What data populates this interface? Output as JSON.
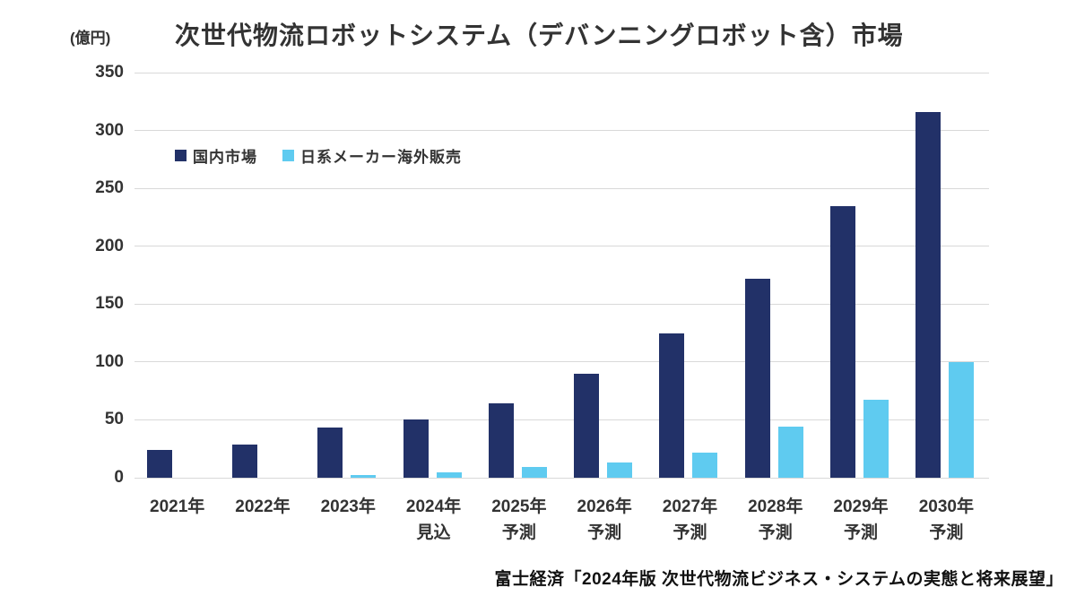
{
  "chart_data": {
    "type": "bar",
    "title": "次世代物流ロボットシステム（デバンニングロボット含）市場",
    "unit_label": "(億円)",
    "categories": [
      "2021年",
      "2022年",
      "2023年",
      "2024年",
      "2025年",
      "2026年",
      "2027年",
      "2028年",
      "2029年",
      "2030年"
    ],
    "category_sublabels": [
      "",
      "",
      "",
      "見込",
      "予測",
      "予測",
      "予測",
      "予測",
      "予測",
      "予測"
    ],
    "series": [
      {
        "name": "国内市場",
        "color": "#223168",
        "values": [
          24,
          29,
          43,
          50,
          64,
          90,
          125,
          172,
          235,
          316
        ]
      },
      {
        "name": "日系メーカー海外販売",
        "color": "#5FCBF0",
        "values": [
          0,
          0,
          2,
          5,
          9,
          13,
          22,
          44,
          67,
          100
        ]
      }
    ],
    "ylim": [
      0,
      350
    ],
    "ytick_step": 50,
    "yticks": [
      0,
      50,
      100,
      150,
      200,
      250,
      300,
      350
    ],
    "grid": true,
    "legend_position": "upper-left-inside",
    "gridline_color": "#d9d9d9",
    "source": "富士経済「2024年版 次世代物流ビジネス・システムの実態と将来展望」"
  }
}
